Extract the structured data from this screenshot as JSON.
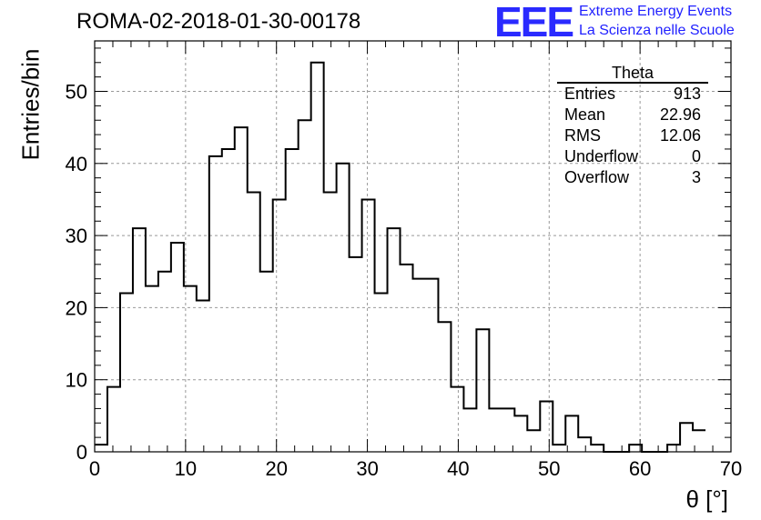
{
  "header": {
    "run_title": "ROMA-02-2018-01-30-00178",
    "logo_letters": "EEE",
    "logo_line1": "Extreme Energy Events",
    "logo_line2": "La Scienza nelle Scuole"
  },
  "stats_box": {
    "title": "Theta",
    "rows": [
      {
        "label": "Entries",
        "value": "913"
      },
      {
        "label": "Mean",
        "value": "22.96"
      },
      {
        "label": "RMS",
        "value": "12.06"
      },
      {
        "label": "Underflow",
        "value": "0"
      },
      {
        "label": "Overflow",
        "value": "3"
      }
    ]
  },
  "colors": {
    "line": "#000000",
    "grid": "#999999",
    "logo": "#2a2aff"
  },
  "chart_data": {
    "type": "histogram",
    "title": "ROMA-02-2018-01-30-00178",
    "xlabel": "θ [°]",
    "ylabel": "Entries/bin",
    "xlim": [
      0,
      70
    ],
    "ylim": [
      0,
      57
    ],
    "xticks": [
      0,
      10,
      20,
      30,
      40,
      50,
      60,
      70
    ],
    "yticks": [
      0,
      10,
      20,
      30,
      40,
      50
    ],
    "grid": true,
    "bin_width": 1.4,
    "values": [
      1,
      9,
      22,
      31,
      23,
      25,
      29,
      23,
      21,
      41,
      42,
      45,
      36,
      25,
      35,
      42,
      46,
      54,
      36,
      40,
      27,
      35,
      22,
      31,
      26,
      24,
      24,
      18,
      9,
      6,
      17,
      6,
      6,
      5,
      3,
      7,
      1,
      5,
      2,
      1,
      0,
      0,
      1,
      0,
      0,
      1,
      4,
      3
    ]
  }
}
